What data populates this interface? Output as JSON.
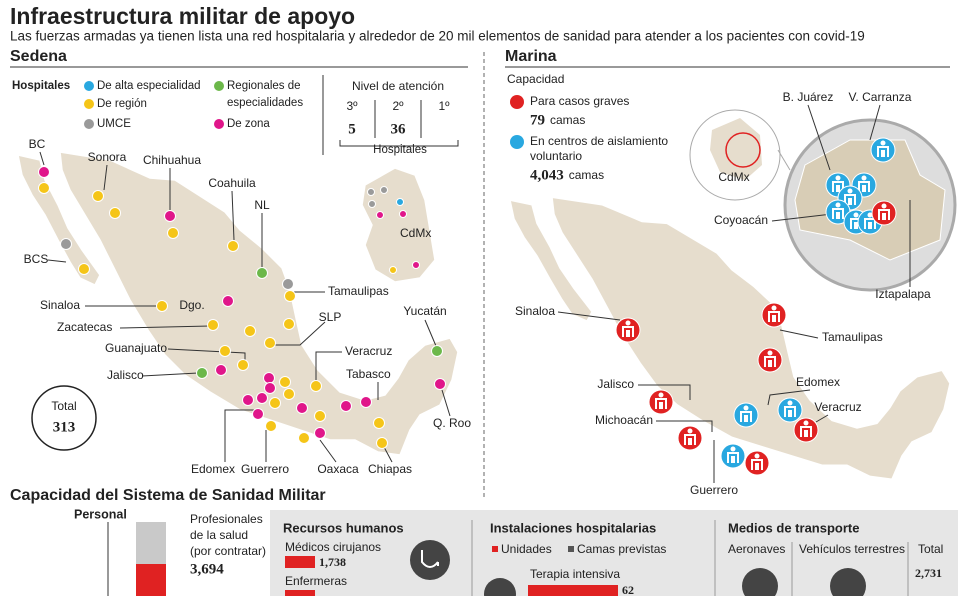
{
  "header": {
    "title": "Infraestructura militar de apoyo",
    "subtitle": "Las fuerzas armadas ya tienen lista una red hospitalaria y alrededor de 20 mil elementos de sanidad para atender a los pacientes con covid-19"
  },
  "sedena": {
    "heading": "Sedena",
    "hospitals_label": "Hospitales",
    "legend": [
      {
        "lines": [
          "De alta especialidad"
        ],
        "color": "#29a8e0"
      },
      {
        "lines": [
          "Regionales de",
          "especialidades"
        ],
        "color": "#6cb84a"
      },
      {
        "lines": [
          "De región"
        ],
        "color": "#f5c518"
      },
      {
        "lines": [
          "UMCE"
        ],
        "color": "#9a9a9a"
      },
      {
        "lines": [
          "De zona"
        ],
        "color": "#e0168a"
      }
    ],
    "levels": {
      "title": "Nivel de atención",
      "items": [
        {
          "level": "3º",
          "count": "5"
        },
        {
          "level": "2º",
          "count": "36"
        },
        {
          "level": "1º"
        }
      ],
      "footer": "Hospitales"
    },
    "total": {
      "label": "Total",
      "value": "313"
    },
    "states": [
      "BC",
      "Sonora",
      "Chihuahua",
      "Coahuila",
      "NL",
      "Tamaulipas",
      "BCS",
      "Sinaloa",
      "Dgo.",
      "SLP",
      "Zacatecas",
      "Guanajuato",
      "Veracruz",
      "Yucatán",
      "Jalisco",
      "Tabasco",
      "Q. Roo",
      "Edomex",
      "Guerrero",
      "Oaxaca",
      "Chiapas",
      "CdMx"
    ]
  },
  "marina": {
    "heading": "Marina",
    "capacity_label": "Capacidad",
    "items": [
      {
        "lines": [
          "Para casos graves"
        ],
        "value": "79",
        "unit": "camas",
        "color": "#e02222"
      },
      {
        "lines": [
          "En centros de aislamiento",
          "voluntario"
        ],
        "value": "4,043",
        "unit": "camas",
        "color": "#29a8e0"
      }
    ],
    "labels": [
      "CdMx",
      "B. Juárez",
      "V. Carranza",
      "Coyoacán",
      "Iztapalapa",
      "Sinaloa",
      "Tamaulipas",
      "Jalisco",
      "Edomex",
      "Michoacán",
      "Veracruz",
      "Guerrero"
    ]
  },
  "bottom": {
    "title": "Capacidad del Sistema de Sanidad Militar",
    "personal": {
      "label": "Personal",
      "lines": [
        "Profesionales",
        "de la salud",
        "(por contratar)"
      ],
      "value": "3,694"
    },
    "hr": {
      "title": "Recursos humanos",
      "items": [
        {
          "label": "Médicos cirujanos",
          "value": "1,738"
        },
        {
          "label": "Enfermeras"
        }
      ]
    },
    "facilities": {
      "title": "Instalaciones hospitalarias",
      "legend": [
        "Unidades",
        "Camas previstas"
      ],
      "item": {
        "label": "Terapia intensiva",
        "value": "62"
      }
    },
    "transport": {
      "title": "Medios de transporte",
      "cols": [
        "Aeronaves",
        "Vehículos terrestres",
        "Total"
      ],
      "total": "2,731"
    }
  }
}
